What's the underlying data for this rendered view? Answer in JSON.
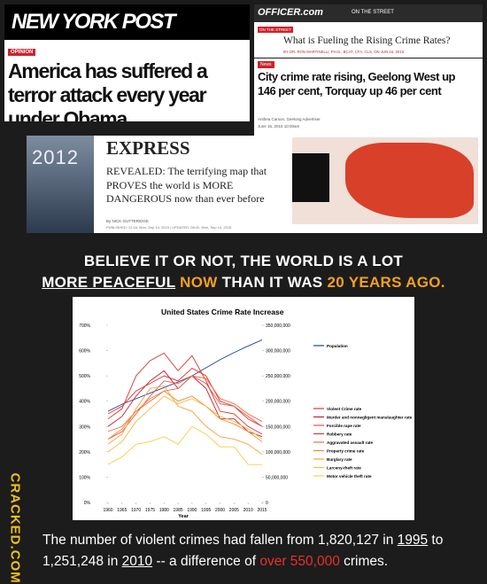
{
  "clippings": {
    "nypost": {
      "masthead": "NEW YORK POST",
      "section": "OPINION",
      "headline": "America has suffered a terror attack every year under Obama"
    },
    "officer": {
      "logo": "OFFICER.com",
      "nav": "ON THE STREET",
      "section": "ON THE STREET",
      "headline": "What is Fueling the Rising Crime Rates?",
      "byline": "BY DR. RON MARTINELLI, PH.D., BCAT, CFA, CLS, ON JUN 16, 2016"
    },
    "geelong": {
      "tag": "News",
      "headline": "City crime rate rising, Geelong West up 146 per cent, Torquay up 46 per cent",
      "author": "Anthea Carson, Geelong Advertiser",
      "date": "June 16, 2016 10:00am"
    },
    "express": {
      "poster": "2012",
      "logo": "EXPRESS",
      "headline": "REVEALED: The terrifying map that PROVES the world is MORE DANGEROUS now than ever before",
      "byline": "By NICK GUTTERIDGE",
      "published": "PUBLISHED: 12:16, Mon, Sep 14, 2015 | UPDATED: 08:42, Mon, Sep 14, 2015"
    }
  },
  "headline": [
    "BELIEVE IT OR NOT, THE WORLD IS A LOT",
    "MORE PEACEFUL",
    "NOW",
    "THAN IT WAS",
    "20 YEARS AGO."
  ],
  "chart_data": {
    "type": "line",
    "title": "United States Crime Rate Increase",
    "xlabel": "Year",
    "x": [
      1960,
      1965,
      1970,
      1975,
      1980,
      1985,
      1990,
      1995,
      2000,
      2005,
      2010,
      2015
    ],
    "xlim": [
      1960,
      2015
    ],
    "xticks": [
      1960,
      1965,
      1970,
      1975,
      1980,
      1985,
      1990,
      1995,
      2000,
      2005,
      2010,
      2015
    ],
    "ylim": [
      0,
      700
    ],
    "yticks": [
      {
        "value": 0,
        "label": "0%"
      },
      {
        "value": 100,
        "label": "100%"
      },
      {
        "value": 200,
        "label": "200%"
      },
      {
        "value": 300,
        "label": "300%"
      },
      {
        "value": 400,
        "label": "400%"
      },
      {
        "value": 500,
        "label": "500%"
      },
      {
        "value": 600,
        "label": "600%"
      },
      {
        "value": 700,
        "label": "700%"
      }
    ],
    "y2lim": [
      0,
      350000000
    ],
    "y2ticks": [
      0,
      {
        "value": 50000000,
        "label": "50,000,000"
      },
      {
        "value": 100000000,
        "label": "100,000,000"
      },
      {
        "value": 150000000,
        "label": "150,000,000"
      },
      {
        "value": 200000000,
        "label": "200,000,000"
      },
      {
        "value": 250000000,
        "label": "250,000,000"
      },
      {
        "value": 300000000,
        "label": "300,000,000"
      },
      {
        "value": 350000000,
        "label": "350,000,000"
      }
    ],
    "series": [
      {
        "name": "Population",
        "color": "#1f3f9f",
        "axis": "y2",
        "values": [
          180000000,
          194000000,
          205000000,
          216000000,
          227000000,
          238000000,
          250000000,
          266000000,
          282000000,
          296000000,
          309000000,
          321000000
        ]
      },
      {
        "name": "Violent Crime rate",
        "color": "#e8312a",
        "values": [
          350,
          380,
          440,
          470,
          500,
          480,
          530,
          500,
          400,
          380,
          330,
          300
        ]
      },
      {
        "name": "Murder and nonnegligent manslaughter rate",
        "color": "#c0202a",
        "values": [
          300,
          340,
          420,
          480,
          520,
          450,
          500,
          450,
          330,
          330,
          280,
          260
        ]
      },
      {
        "name": "Forcible rape rate",
        "color": "#f0504a",
        "values": [
          250,
          280,
          350,
          420,
          480,
          470,
          500,
          470,
          390,
          380,
          340,
          300
        ]
      },
      {
        "name": "Robbery rate",
        "color": "#d63a2f",
        "values": [
          330,
          370,
          500,
          560,
          590,
          520,
          580,
          480,
          360,
          350,
          300,
          270
        ]
      },
      {
        "name": "Aggravated assault rate",
        "color": "#f26a3a",
        "values": [
          280,
          300,
          360,
          400,
          440,
          450,
          500,
          490,
          410,
          390,
          350,
          320
        ]
      },
      {
        "name": "Property crime rate",
        "color": "#f08a30",
        "values": [
          250,
          290,
          360,
          410,
          440,
          400,
          420,
          380,
          330,
          310,
          280,
          240
        ]
      },
      {
        "name": "Burglary rate",
        "color": "#f5a23a",
        "values": [
          230,
          270,
          370,
          450,
          460,
          380,
          360,
          300,
          260,
          250,
          230,
          190
        ]
      },
      {
        "name": "Larceny-theft rate",
        "color": "#f7b84a",
        "values": [
          200,
          240,
          320,
          370,
          420,
          390,
          410,
          380,
          340,
          320,
          290,
          250
        ]
      },
      {
        "name": "Motor vehicle theft rate",
        "color": "#f5d040",
        "values": [
          150,
          180,
          230,
          240,
          260,
          230,
          300,
          270,
          220,
          220,
          150,
          150
        ]
      }
    ]
  },
  "caption": [
    "The number of violent crimes had fallen from 1,820,127 in ",
    "1995",
    " to 1,251,248 in ",
    "2010",
    " -- a difference of ",
    "over 550,000",
    " crimes."
  ],
  "watermark": "CRACKED.COM"
}
